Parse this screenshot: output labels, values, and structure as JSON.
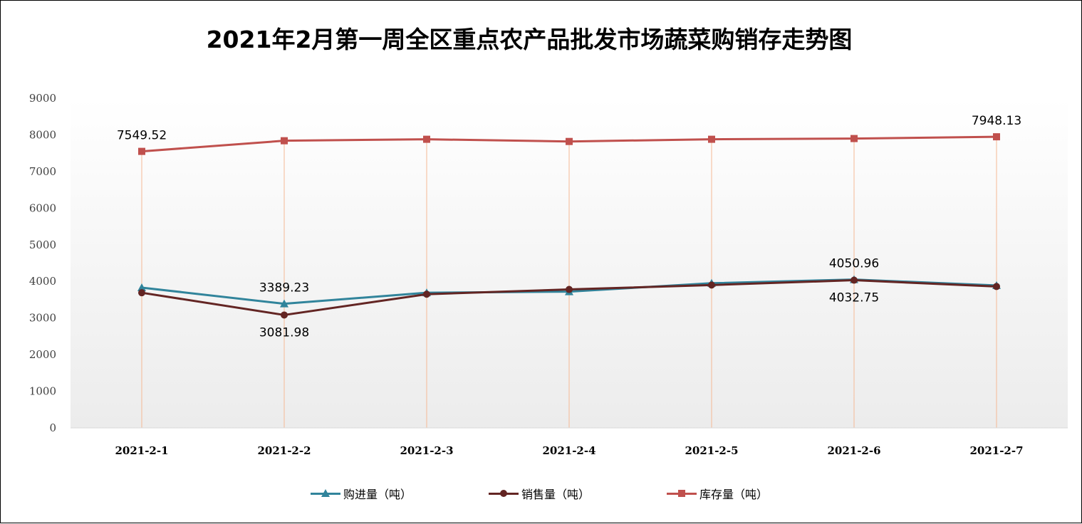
{
  "chart_data": {
    "type": "line",
    "title": "2021年2月第一周全区重点农产品批发市场蔬菜购销存走势图",
    "xlabel": "",
    "ylabel": "",
    "ylim": [
      0,
      9000
    ],
    "yticks": [
      "0",
      "1000",
      "2000",
      "3000",
      "4000",
      "5000",
      "6000",
      "7000",
      "8000",
      "9000"
    ],
    "categories": [
      "2021-2-1",
      "2021-2-2",
      "2021-2-3",
      "2021-2-4",
      "2021-2-5",
      "2021-2-6",
      "2021-2-7"
    ],
    "grid": "vertical drop lines",
    "legend_position": "bottom",
    "series": [
      {
        "name": "购进量（吨）",
        "color": "#31849b",
        "marker": "triangle",
        "values": [
          3830,
          3389.23,
          3690,
          3720,
          3950,
          4050.96,
          3890
        ],
        "labels": [
          null,
          "3389.23",
          null,
          null,
          null,
          "4050.96",
          null
        ]
      },
      {
        "name": "销售量（吨）",
        "color": "#632523",
        "marker": "circle",
        "values": [
          3690,
          3081.98,
          3650,
          3780,
          3900,
          4032.75,
          3860
        ],
        "labels": [
          null,
          "3081.98",
          null,
          null,
          null,
          "4032.75",
          null
        ]
      },
      {
        "name": "库存量（吨）",
        "color": "#c0504d",
        "marker": "square",
        "values": [
          7549.52,
          7840,
          7880,
          7820,
          7880,
          7900,
          7948.13
        ],
        "labels": [
          "7549.52",
          null,
          null,
          null,
          null,
          null,
          "7948.13"
        ]
      }
    ]
  }
}
